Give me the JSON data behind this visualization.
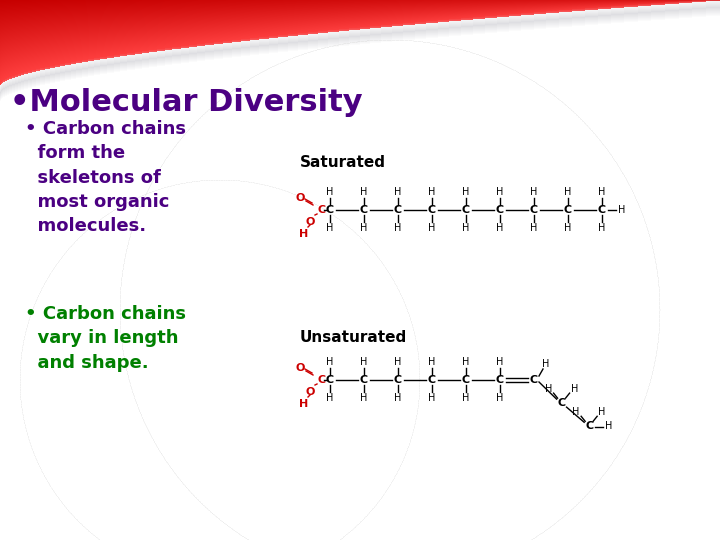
{
  "title": "•Molecular Diversity",
  "title_color": "#4B0082",
  "title_fontsize": 22,
  "bullet1_text": "• Carbon chains\n  form the\n  skeletons of\n  most organic\n  molecules.",
  "bullet1_color": "#4B0082",
  "bullet1_fontsize": 13,
  "bullet2_text": "• Carbon chains\n  vary in length\n  and shape.",
  "bullet2_color": "#008000",
  "bullet2_fontsize": 13,
  "saturated_label": "Saturated",
  "unsaturated_label": "Unsaturated",
  "bg_color": "#ffffff",
  "red_color": "#cc0000",
  "black_color": "#000000"
}
